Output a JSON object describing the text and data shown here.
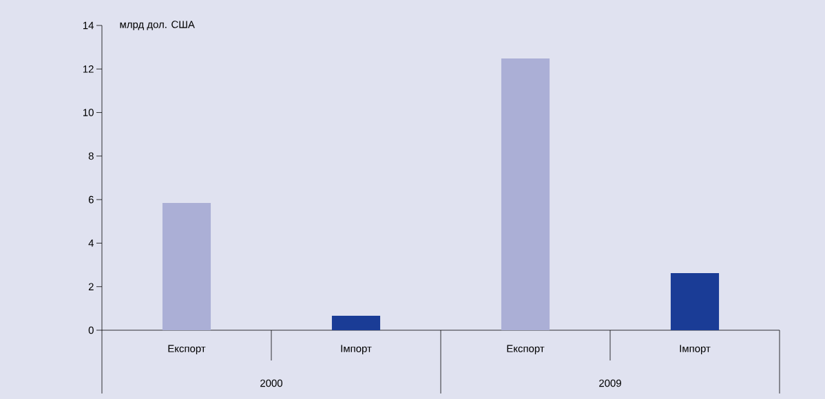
{
  "chart_data": {
    "type": "bar",
    "ylabel": "млрд дол. США",
    "categories": [
      "Експорт",
      "Імпорт",
      "Експорт",
      "Імпорт"
    ],
    "values": [
      5.85,
      0.66,
      12.48,
      2.62
    ],
    "colors": [
      "#abafd6",
      "#1a3c96",
      "#abafd6",
      "#1a3c96"
    ],
    "annotations": [
      "2000",
      "2009"
    ],
    "ylim": [
      0,
      14
    ],
    "yticks": [
      0,
      2,
      4,
      6,
      8,
      10,
      12,
      14
    ],
    "grid": false
  }
}
